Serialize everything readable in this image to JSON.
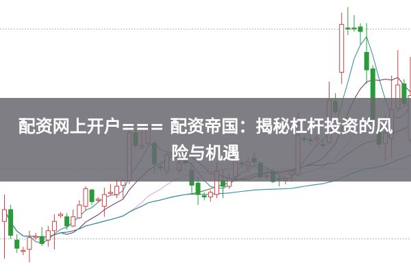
{
  "title": "配资网上开户=== 配资帝国：揭秘杠杆投资的风险与机遇",
  "chart_data": {
    "type": "candlestick",
    "title": "",
    "xlabel": "",
    "ylabel": "",
    "ylim": [
      0,
      100
    ],
    "grid": "horizontal dotted",
    "gridlines": [
      12.8,
      38.4,
      63.9,
      89.4
    ],
    "colors": {
      "up": "#d23c3c",
      "down": "#2a9a3a",
      "grid": "#9a9a9a",
      "banner": "#69696f"
    },
    "moving_averages": [
      {
        "period": 5,
        "color": "#3f8f9c"
      },
      {
        "period": 10,
        "color": "#7a3a6e"
      },
      {
        "period": 20,
        "color": "#e0a6e0"
      },
      {
        "period": 30,
        "color": "#4d7d3a"
      },
      {
        "period": 60,
        "color": "#2f8fa0"
      }
    ],
    "candles": [
      [
        19.2,
        23.5,
        29.0,
        5.6
      ],
      [
        23.5,
        14.1,
        25.2,
        12.8
      ],
      [
        12.4,
        9.4,
        14.5,
        7.7
      ],
      [
        8.6,
        8.6,
        9.9,
        6.9
      ],
      [
        9.0,
        13.3,
        15.8,
        4.3
      ],
      [
        13.3,
        13.7,
        15.0,
        12.4
      ],
      [
        13.7,
        11.1,
        17.1,
        10.3
      ],
      [
        12.4,
        15.8,
        17.5,
        9.9
      ],
      [
        15.8,
        19.2,
        21.8,
        9.0
      ],
      [
        21.3,
        21.8,
        22.6,
        20.5
      ],
      [
        20.9,
        17.5,
        22.2,
        16.2
      ],
      [
        17.5,
        20.9,
        23.5,
        17.1
      ],
      [
        20.5,
        25.2,
        26.9,
        20.1
      ],
      [
        24.7,
        31.1,
        32.0,
        23.0
      ],
      [
        30.7,
        26.4,
        31.1,
        25.2
      ],
      [
        26.9,
        27.3,
        28.1,
        26.0
      ],
      [
        24.7,
        29.0,
        31.5,
        20.9
      ],
      [
        29.4,
        29.8,
        32.8,
        28.6
      ],
      [
        29.0,
        32.0,
        34.5,
        27.7
      ],
      [
        32.4,
        34.1,
        34.9,
        27.7
      ],
      [
        34.1,
        51.5,
        54.1,
        32.8
      ],
      [
        51.5,
        46.9,
        52.8,
        46.0
      ],
      [
        46.0,
        46.9,
        52.4,
        45.6
      ],
      [
        47.7,
        54.1,
        54.9,
        46.9
      ],
      [
        47.7,
        40.1,
        48.6,
        36.7
      ],
      [
        39.2,
        38.8,
        40.5,
        37.5
      ],
      [
        37.5,
        43.5,
        44.3,
        36.2
      ],
      [
        43.9,
        43.5,
        44.7,
        42.2
      ],
      [
        37.9,
        40.5,
        42.2,
        36.7
      ],
      [
        41.3,
        40.5,
        42.2,
        39.6
      ],
      [
        37.9,
        32.4,
        40.5,
        29.4
      ],
      [
        33.2,
        29.0,
        35.4,
        25.2
      ],
      [
        28.6,
        28.1,
        29.8,
        26.9
      ],
      [
        28.1,
        29.8,
        30.7,
        26.4
      ],
      [
        29.0,
        37.5,
        40.5,
        27.7
      ],
      [
        34.1,
        32.0,
        38.4,
        27.7
      ],
      [
        32.0,
        34.9,
        36.7,
        31.1
      ],
      [
        35.4,
        41.3,
        42.2,
        34.1
      ],
      [
        40.5,
        40.1,
        41.3,
        38.8
      ],
      [
        39.6,
        40.9,
        42.2,
        37.1
      ],
      [
        42.2,
        40.9,
        44.3,
        40.1
      ],
      [
        40.5,
        35.4,
        41.3,
        35.0
      ],
      [
        35.4,
        35.8,
        36.7,
        34.5
      ],
      [
        37.5,
        33.7,
        38.4,
        33.2
      ],
      [
        34.9,
        34.5,
        35.8,
        32.0
      ],
      [
        34.1,
        34.9,
        35.8,
        32.8
      ],
      [
        36.2,
        37.5,
        37.9,
        33.7
      ],
      [
        36.2,
        50.7,
        59.2,
        35.4
      ],
      [
        49.4,
        49.0,
        50.7,
        48.1
      ],
      [
        49.0,
        48.6,
        50.3,
        46.9
      ],
      [
        49.0,
        49.8,
        50.7,
        48.1
      ],
      [
        47.3,
        46.9,
        49.0,
        45.6
      ],
      [
        48.1,
        63.4,
        70.2,
        47.3
      ],
      [
        63.0,
        59.2,
        66.0,
        58.3
      ],
      [
        73.6,
        91.1,
        95.3,
        69.4
      ],
      [
        89.8,
        89.4,
        97.4,
        87.2
      ],
      [
        89.8,
        89.6,
        94.5,
        88.5
      ],
      [
        90.2,
        88.5,
        91.5,
        83.8
      ],
      [
        80.9,
        74.5,
        91.5,
        69.4
      ],
      [
        74.9,
        56.6,
        76.2,
        55.8
      ],
      [
        52.4,
        47.3,
        53.7,
        46.0
      ],
      [
        47.7,
        51.5,
        58.3,
        41.3
      ],
      [
        49.4,
        60.0,
        72.4,
        42.2
      ],
      [
        60.5,
        69.0,
        81.7,
        59.2
      ],
      [
        69.4,
        62.2,
        71.1,
        61.7
      ],
      [
        49.0,
        65.1,
        79.2,
        48.1
      ]
    ],
    "candle_fields": [
      "open",
      "close",
      "high",
      "low"
    ]
  }
}
